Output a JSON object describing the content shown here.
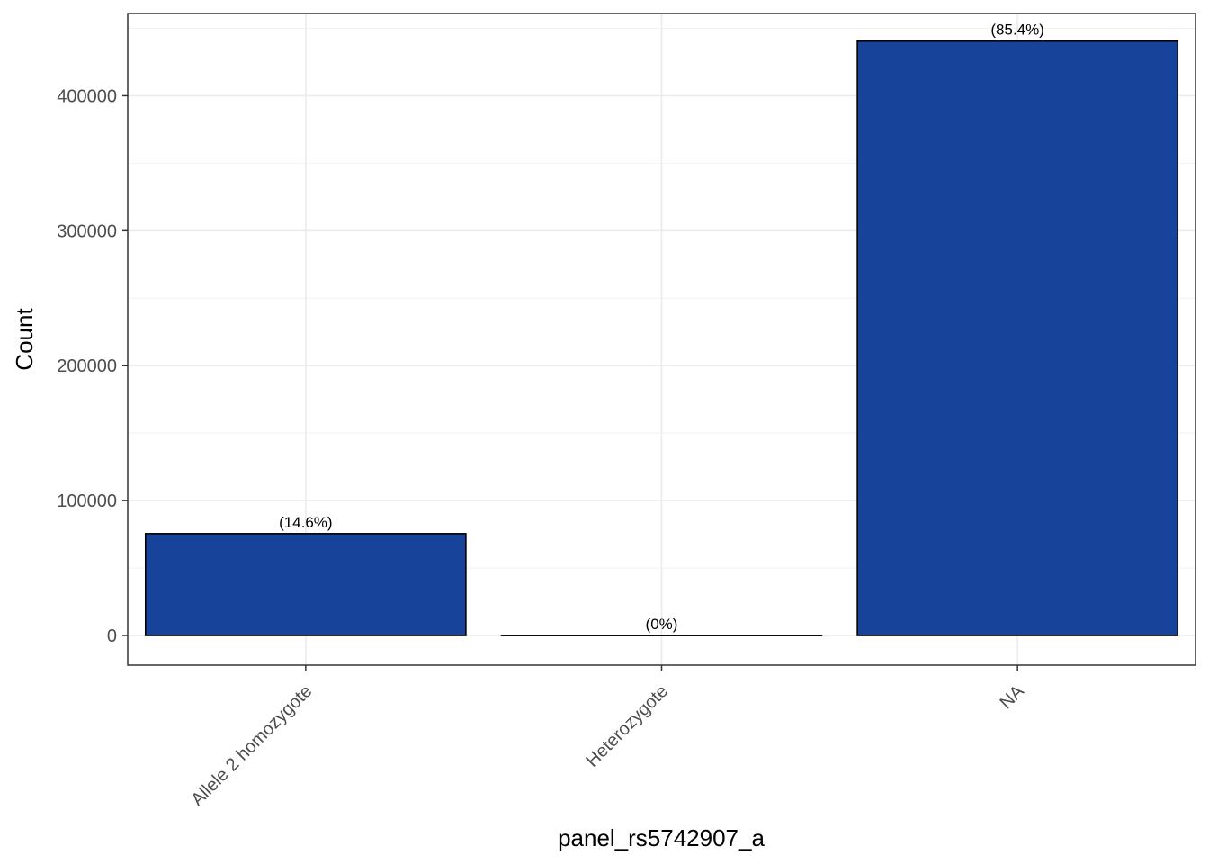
{
  "chart_data": {
    "type": "bar",
    "categories": [
      "Allele 2 homozygote",
      "Heterozygote",
      "NA"
    ],
    "values": [
      75500,
      0,
      440500
    ],
    "data_labels": [
      "(14.6%)",
      "(0%)",
      "(85.4%)"
    ],
    "title": "",
    "xlabel": "panel_rs5742907_a",
    "ylabel": "Count",
    "ylim": [
      -22000,
      461000
    ],
    "yticks": [
      0,
      100000,
      200000,
      300000,
      400000
    ],
    "ytick_labels": [
      "0",
      "100000",
      "200000",
      "300000",
      "400000"
    ],
    "grid": true,
    "legend": "none",
    "bar_color": "#18439A",
    "bar_edge_color": "#000000"
  }
}
